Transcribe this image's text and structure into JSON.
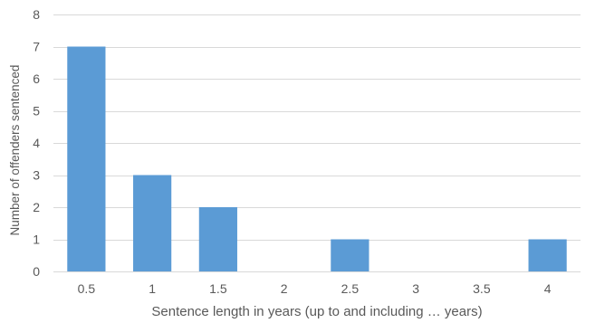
{
  "chart_data": {
    "type": "bar",
    "categories": [
      "0.5",
      "1",
      "1.5",
      "2",
      "2.5",
      "3",
      "3.5",
      "4"
    ],
    "values": [
      7,
      3,
      2,
      0,
      1,
      0,
      0,
      1
    ],
    "xlabel": "Sentence length in years (up to and including … years)",
    "ylabel": "Number of offenders  sentenced",
    "ylim": [
      0,
      8
    ],
    "yticks": [
      0,
      1,
      2,
      3,
      4,
      5,
      6,
      7,
      8
    ],
    "grid": true,
    "legend": "none",
    "bar_color": "#5B9BD5"
  }
}
